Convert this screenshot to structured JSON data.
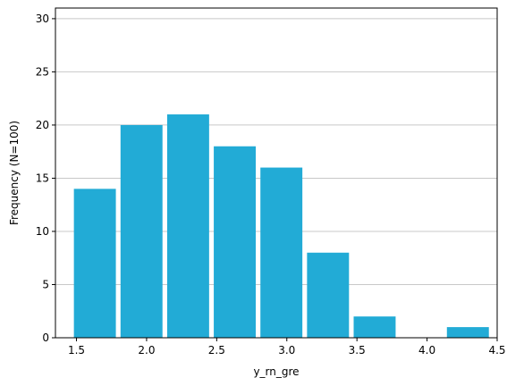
{
  "chart_data": {
    "type": "bar",
    "title": "",
    "xlabel": "y_rn_gre",
    "ylabel": "Frequency (N=100)",
    "bin_edges": [
      1.465,
      1.7975,
      2.13,
      2.4625,
      2.795,
      3.1275,
      3.46,
      3.7925,
      4.125,
      4.4575
    ],
    "values": [
      14,
      20,
      21,
      18,
      16,
      8,
      2,
      0,
      1
    ],
    "xlim": [
      1.35,
      4.5
    ],
    "ylim": [
      0,
      31
    ],
    "xticks": [
      "1.5",
      "2.0",
      "2.5",
      "3.0",
      "3.5",
      "4.0",
      "4.5"
    ],
    "yticks": [
      "0",
      "5",
      "10",
      "15",
      "20",
      "25",
      "30"
    ],
    "grid": "y",
    "bar_color": "#22abd6",
    "grid_color": "#c8c8c8"
  }
}
